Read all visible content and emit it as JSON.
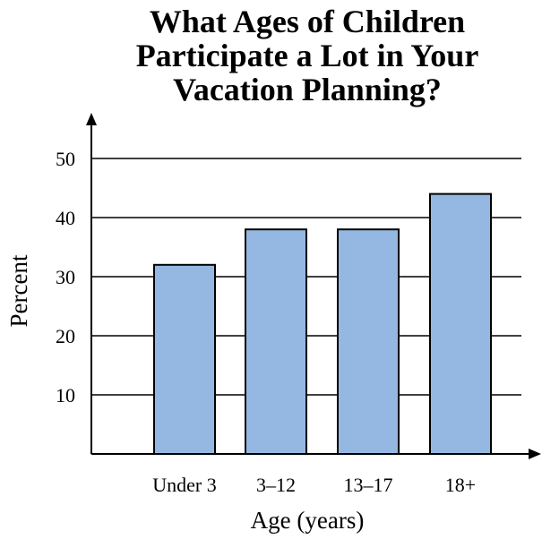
{
  "chart_data": {
    "type": "bar",
    "title_lines": [
      "What Ages of Children",
      "Participate a Lot in Your",
      "Vacation Planning?"
    ],
    "title": "What Ages of Children Participate a Lot in Your Vacation Planning?",
    "categories": [
      "Under 3",
      "3–12",
      "13–17",
      "18+"
    ],
    "values": [
      32,
      38,
      38,
      44
    ],
    "xlabel": "Age (years)",
    "ylabel": "Percent",
    "ylim": [
      0,
      55
    ],
    "yticks": [
      10,
      20,
      30,
      40,
      50
    ],
    "grid": true,
    "colors": {
      "bar_fill": "#94b8e1",
      "bar_stroke": "#000000",
      "axis": "#000000",
      "grid": "#000000"
    }
  }
}
